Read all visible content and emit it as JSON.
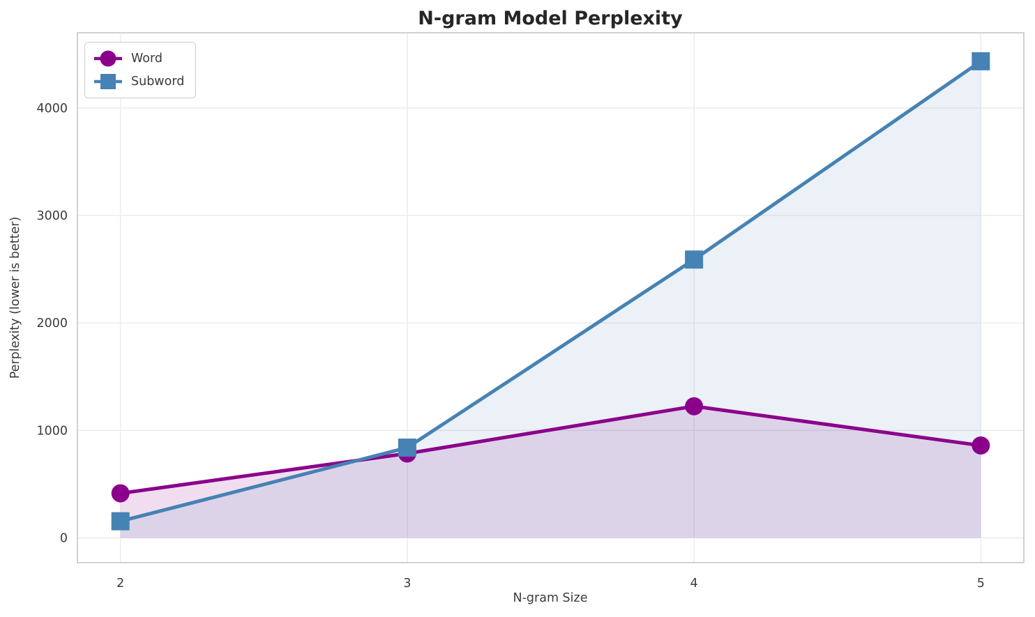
{
  "chart_data": {
    "type": "line",
    "title": "N-gram Model Perplexity",
    "xlabel": "N-gram Size",
    "ylabel": "Perplexity (lower is better)",
    "x": [
      2,
      3,
      4,
      5
    ],
    "series": [
      {
        "name": "Word",
        "values": [
          415,
          785,
          1225,
          860
        ],
        "color": "#8b008b",
        "marker": "circle",
        "fill_opacity": 0.13
      },
      {
        "name": "Subword",
        "values": [
          155,
          840,
          2590,
          4435
        ],
        "color": "#4682b4",
        "marker": "square",
        "fill_opacity": 0.11
      }
    ],
    "x_ticks": [
      "2",
      "3",
      "4",
      "5"
    ],
    "x_tick_values": [
      2,
      3,
      4,
      5
    ],
    "y_ticks": [
      "0",
      "1000",
      "2000",
      "3000",
      "4000"
    ],
    "y_tick_values": [
      0,
      1000,
      2000,
      3000,
      4000
    ],
    "xlim": [
      1.85,
      5.15
    ],
    "ylim": [
      -230,
      4700
    ],
    "grid": true,
    "legend_position": "upper left",
    "area_fill_to": 0,
    "colors": {
      "grid": "#ebebeb",
      "spine": "#cccccc",
      "tick_label": "#3b3b3b",
      "title": "#262626",
      "background": "#ffffff"
    }
  }
}
